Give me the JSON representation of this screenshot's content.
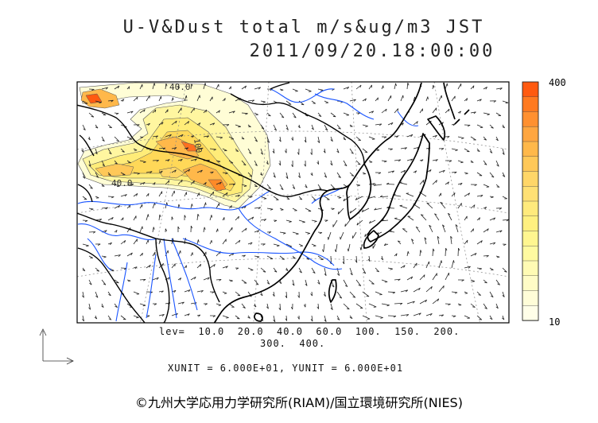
{
  "title_line1": "U-V&Dust total m/s&ug/m3 JST",
  "title_line2": "2011/09/20.18:00:00",
  "contour_labels": [
    "40.0",
    "100",
    "40.0"
  ],
  "colorbar": {
    "max_label": "400",
    "min_label": "10",
    "colors": [
      "#ff5a10",
      "#ff7a20",
      "#ff9030",
      "#ffa640",
      "#ffb84a",
      "#ffc858",
      "#ffd668",
      "#ffe074",
      "#ffea7c",
      "#fff080",
      "#fff690",
      "#fffaa0",
      "#fffbb4",
      "#fffcc6",
      "#fffdd8",
      "#fffee8"
    ]
  },
  "levels_line1": "lev=  10.0  20.0  40.0  60.0  100.  150.  200.",
  "levels_line2": "300.  400.",
  "units_text": "XUNIT = 6.000E+01, YUNIT = 6.000E+01",
  "credit": "©九州大学応用力学研究所(RIAM)/国立環境研究所(NIES)",
  "colors": {
    "coast": "#000000",
    "river": "#1a55ff",
    "grid": "#888888",
    "vector": "#222222"
  }
}
